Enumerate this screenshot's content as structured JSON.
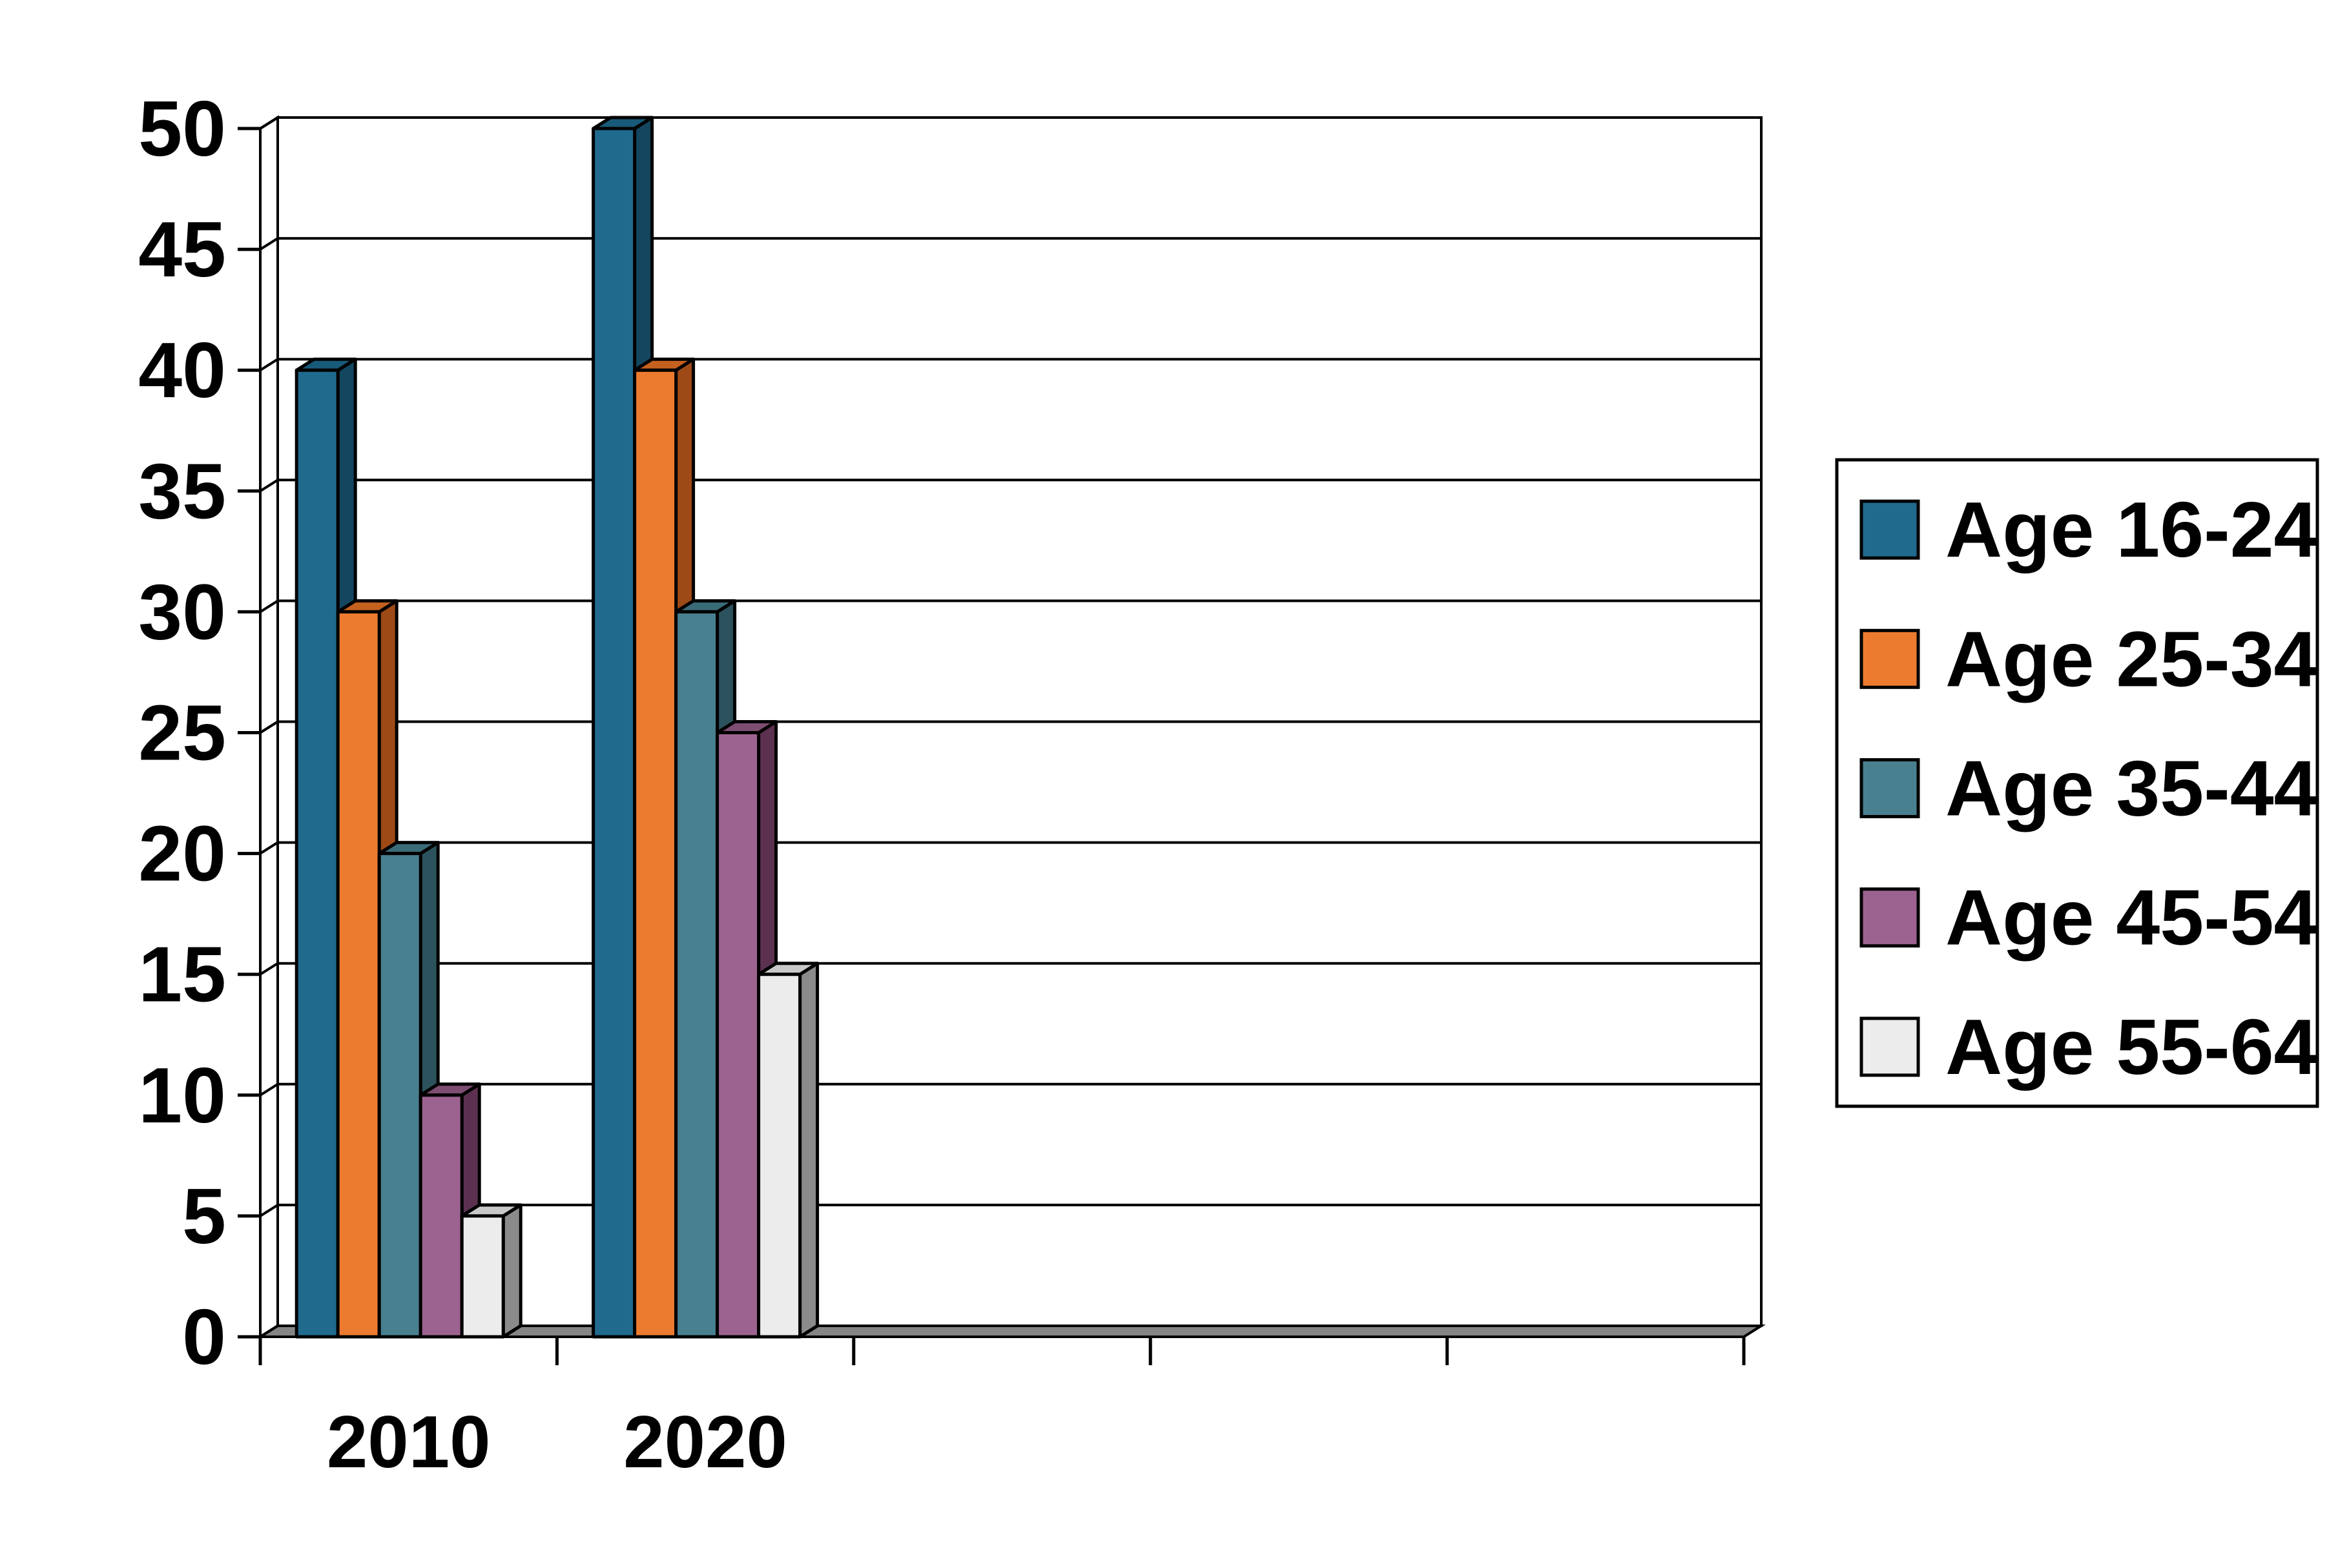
{
  "chart_data": {
    "type": "bar",
    "projection": "3d",
    "title": "",
    "xlabel": "",
    "ylabel": "",
    "categories": [
      "2010",
      "2020"
    ],
    "series": [
      {
        "name": "Age 16-24",
        "values": [
          40,
          50
        ],
        "color": "#206A8E",
        "side_color": "#14465F",
        "top_color": "#185A79"
      },
      {
        "name": "Age 25-34",
        "values": [
          30,
          40
        ],
        "color": "#EC7B30",
        "side_color": "#9E4A17",
        "top_color": "#C4611F"
      },
      {
        "name": "Age 35-44",
        "values": [
          20,
          30
        ],
        "color": "#49808F",
        "side_color": "#2C525D",
        "top_color": "#3A6B78"
      },
      {
        "name": "Age 45-54",
        "values": [
          10,
          25
        ],
        "color": "#9D6390",
        "side_color": "#5C3150",
        "top_color": "#7E4E72"
      },
      {
        "name": "Age 55-64",
        "values": [
          5,
          15
        ],
        "color": "#ECECEC",
        "side_color": "#8B8B8B",
        "top_color": "#C9C9C9"
      }
    ],
    "ylim": [
      0,
      50
    ],
    "ytick_step": 5,
    "ytick_labels": [
      "0",
      "5",
      "10",
      "15",
      "20",
      "25",
      "30",
      "35",
      "40",
      "45",
      "50"
    ],
    "x_slot_count": 5,
    "grid": true,
    "legend_position": "right",
    "legend_labels": [
      "Age 16-24",
      "Age 25-34",
      "Age 35-44",
      "Age 45-54",
      "Age 55-64"
    ],
    "colors": {
      "background": "#FFFFFF",
      "wall": "#FFFFFF",
      "floor": "#858585",
      "stroke": "#000000"
    }
  }
}
